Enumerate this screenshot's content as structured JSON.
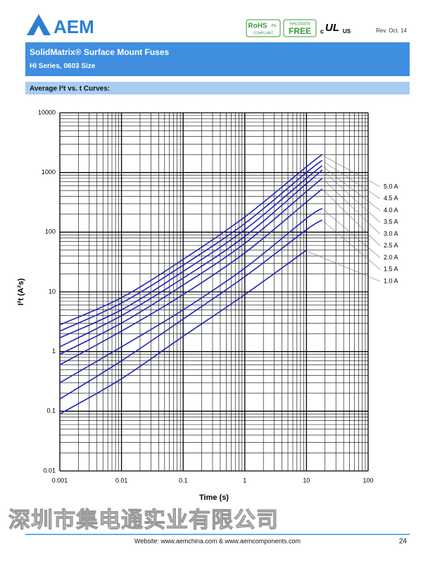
{
  "header": {
    "brand": "AEM",
    "rohs": "RoHS",
    "pb": "Pb",
    "compliant": "COMPLIANT",
    "halogen": "HALOGEN",
    "free": "FREE",
    "ul_c": "c",
    "ul": "UL",
    "ul_us": "US",
    "revision": "Rev. Oct. 14"
  },
  "banner": {
    "title": "SolidMatrix® Surface Mount Fuses",
    "subtitle": "HI Series, 0603 Size"
  },
  "section": "Average I²t vs. t Curves:",
  "chart_data": {
    "type": "line",
    "x_label": "Time (s)",
    "y_label": "I²t (A²s)",
    "x": [
      0.001,
      0.01,
      0.1,
      1,
      10,
      18
    ],
    "series": [
      {
        "name": "5.0 A",
        "color": "#1f22b8",
        "values": [
          2.8,
          8,
          35,
          180,
          1250,
          2000
        ]
      },
      {
        "name": "4.5 A",
        "color": "#1f22b8",
        "values": [
          2.2,
          6.5,
          28,
          140,
          1000,
          1600
        ]
      },
      {
        "name": "4.0 A",
        "color": "#1f22b8",
        "values": [
          1.7,
          5,
          22,
          110,
          800,
          1300
        ]
      },
      {
        "name": "3.5 A",
        "color": "#1f22b8",
        "values": [
          1.2,
          4,
          17,
          85,
          650,
          1100
        ]
      },
      {
        "name": "3.0 A",
        "color": "#1f22b8",
        "values": [
          0.9,
          3,
          13,
          65,
          480,
          800
        ]
      },
      {
        "name": "2.5 A",
        "color": "#1f22b8",
        "values": [
          0.6,
          2.2,
          9,
          45,
          320,
          530
        ]
      },
      {
        "name": "2.0 A",
        "color": "#1f22b8",
        "values": [
          0.3,
          1.2,
          5,
          25,
          170,
          250
        ]
      },
      {
        "name": "1.5 A",
        "color": "#1f22b8",
        "values": [
          0.16,
          0.7,
          3.5,
          18,
          110,
          160
        ]
      },
      {
        "name": "1.0 A",
        "color": "#1f22b8",
        "values": [
          0.09,
          0.35,
          1.8,
          9,
          50,
          null
        ]
      }
    ],
    "xlim": [
      0.001,
      100
    ],
    "ylim": [
      0.01,
      10000
    ],
    "xticks": [
      0.001,
      0.01,
      0.1,
      1,
      10,
      100
    ],
    "yticks": [
      0.01,
      0.1,
      1,
      10,
      100,
      1000,
      10000
    ],
    "log_x": true,
    "log_y": true,
    "grid": true,
    "minor_grid": true
  },
  "watermark": "深圳市集电通实业有限公司",
  "footer": {
    "website": "Website:  www.aemchina.com & www.aemcomponents.com",
    "page": "24"
  }
}
